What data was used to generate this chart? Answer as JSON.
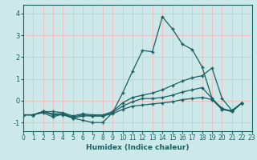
{
  "xlabel": "Humidex (Indice chaleur)",
  "bg_color": "#cce8e8",
  "grid_color": "#f0c0c0",
  "line_color": "#1a6060",
  "xlim": [
    0,
    23
  ],
  "ylim": [
    -1.4,
    4.4
  ],
  "xticks": [
    0,
    1,
    2,
    3,
    4,
    5,
    6,
    7,
    8,
    9,
    10,
    11,
    12,
    13,
    14,
    15,
    16,
    17,
    18,
    19,
    20,
    21,
    22,
    23
  ],
  "yticks": [
    -1,
    0,
    1,
    2,
    3,
    4
  ],
  "series": [
    [
      [
        0,
        -0.65
      ],
      [
        1,
        -0.65
      ],
      [
        2,
        -0.55
      ],
      [
        3,
        -0.75
      ],
      [
        4,
        -0.6
      ],
      [
        5,
        -0.8
      ],
      [
        6,
        -0.9
      ],
      [
        7,
        -1.0
      ],
      [
        8,
        -1.0
      ],
      [
        9,
        -0.55
      ],
      [
        10,
        0.35
      ],
      [
        11,
        1.35
      ],
      [
        12,
        2.3
      ],
      [
        13,
        2.25
      ],
      [
        14,
        3.85
      ],
      [
        15,
        3.3
      ],
      [
        16,
        2.6
      ],
      [
        17,
        2.35
      ],
      [
        18,
        1.55
      ],
      [
        19,
        0.1
      ],
      [
        20,
        -0.4
      ],
      [
        21,
        -0.45
      ],
      [
        22,
        -0.1
      ]
    ],
    [
      [
        0,
        -0.65
      ],
      [
        1,
        -0.65
      ],
      [
        2,
        -0.5
      ],
      [
        3,
        -0.5
      ],
      [
        4,
        -0.55
      ],
      [
        5,
        -0.7
      ],
      [
        6,
        -0.6
      ],
      [
        7,
        -0.65
      ],
      [
        8,
        -0.65
      ],
      [
        9,
        -0.5
      ],
      [
        10,
        -0.1
      ],
      [
        11,
        0.15
      ],
      [
        12,
        0.25
      ],
      [
        13,
        0.35
      ],
      [
        14,
        0.5
      ],
      [
        15,
        0.7
      ],
      [
        16,
        0.9
      ],
      [
        17,
        1.05
      ],
      [
        18,
        1.15
      ],
      [
        19,
        1.5
      ],
      [
        20,
        0.1
      ],
      [
        21,
        -0.45
      ],
      [
        22,
        -0.1
      ]
    ],
    [
      [
        0,
        -0.65
      ],
      [
        1,
        -0.65
      ],
      [
        2,
        -0.5
      ],
      [
        3,
        -0.6
      ],
      [
        4,
        -0.6
      ],
      [
        5,
        -0.75
      ],
      [
        6,
        -0.65
      ],
      [
        7,
        -0.7
      ],
      [
        8,
        -0.7
      ],
      [
        9,
        -0.55
      ],
      [
        10,
        -0.25
      ],
      [
        11,
        -0.05
      ],
      [
        12,
        0.1
      ],
      [
        13,
        0.1
      ],
      [
        14,
        0.15
      ],
      [
        15,
        0.25
      ],
      [
        16,
        0.4
      ],
      [
        17,
        0.5
      ],
      [
        18,
        0.6
      ],
      [
        19,
        0.1
      ],
      [
        20,
        -0.35
      ],
      [
        21,
        -0.5
      ],
      [
        22,
        -0.1
      ]
    ],
    [
      [
        0,
        -0.65
      ],
      [
        1,
        -0.65
      ],
      [
        2,
        -0.5
      ],
      [
        3,
        -0.65
      ],
      [
        4,
        -0.65
      ],
      [
        5,
        -0.8
      ],
      [
        6,
        -0.7
      ],
      [
        7,
        -0.7
      ],
      [
        8,
        -0.7
      ],
      [
        9,
        -0.6
      ],
      [
        10,
        -0.4
      ],
      [
        11,
        -0.25
      ],
      [
        12,
        -0.2
      ],
      [
        13,
        -0.15
      ],
      [
        14,
        -0.1
      ],
      [
        15,
        -0.05
      ],
      [
        16,
        0.05
      ],
      [
        17,
        0.1
      ],
      [
        18,
        0.15
      ],
      [
        19,
        0.05
      ],
      [
        20,
        -0.4
      ],
      [
        21,
        -0.5
      ],
      [
        22,
        -0.1
      ]
    ]
  ]
}
